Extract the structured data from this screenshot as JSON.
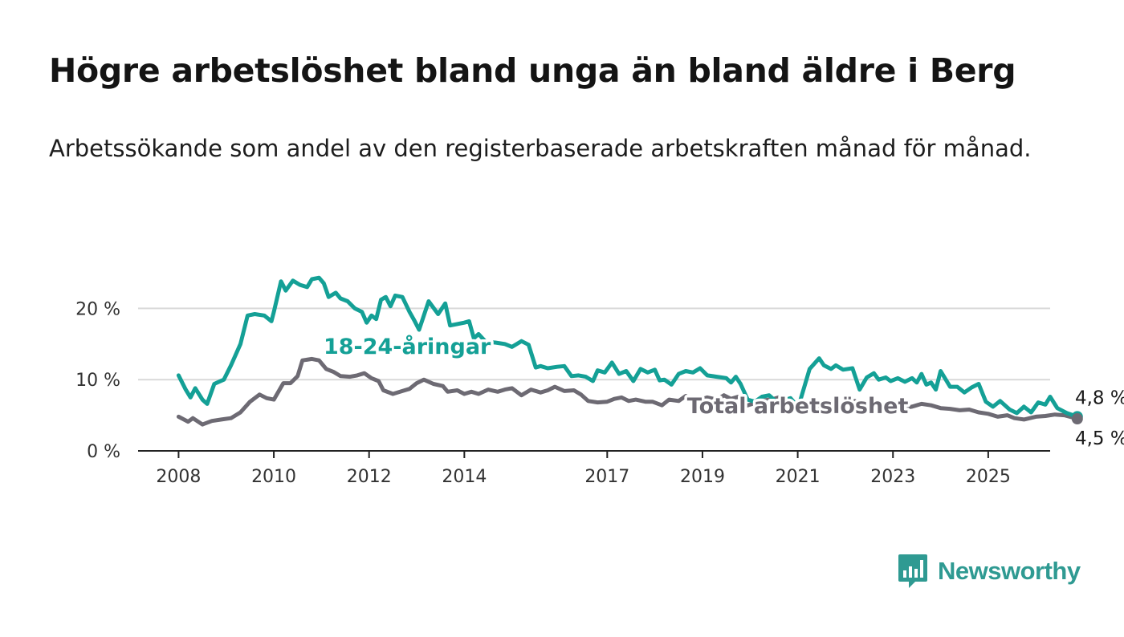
{
  "title": "Högre arbetslöshet bland unga än bland äldre i Berg",
  "subtitle": "Arbetssökande som andel av den registerbaserade arbetskraften månad för månad.",
  "brand": "Newsworthy",
  "colors": {
    "youth": "#14a096",
    "total": "#6d6a73",
    "grid": "#d9d9d9",
    "axis": "#222222"
  },
  "chart_data": {
    "type": "line",
    "y_ticks": [
      {
        "value": 0,
        "label": "0 %"
      },
      {
        "value": 10,
        "label": "10 %"
      },
      {
        "value": 20,
        "label": "20 %"
      }
    ],
    "x_ticks": [
      {
        "value": 2008,
        "label": "2008"
      },
      {
        "value": 2010,
        "label": "2010"
      },
      {
        "value": 2012,
        "label": "2012"
      },
      {
        "value": 2014,
        "label": "2014"
      },
      {
        "value": 2017,
        "label": "2017"
      },
      {
        "value": 2019,
        "label": "2019"
      },
      {
        "value": 2021,
        "label": "2021"
      },
      {
        "value": 2023,
        "label": "2023"
      },
      {
        "value": 2025,
        "label": "2025"
      }
    ],
    "xlim": [
      2007.15,
      2026.3
    ],
    "ylim": [
      0,
      25
    ],
    "series": [
      {
        "name": "18-24-åringar",
        "color": "#14a096",
        "label_at": [
          2012.8,
          13.6
        ],
        "end_label": "4,8 %",
        "points": [
          [
            2008.0,
            10.6
          ],
          [
            2008.15,
            8.6
          ],
          [
            2008.25,
            7.5
          ],
          [
            2008.35,
            8.8
          ],
          [
            2008.5,
            7.2
          ],
          [
            2008.6,
            6.6
          ],
          [
            2008.75,
            9.4
          ],
          [
            2008.95,
            10.0
          ],
          [
            2009.1,
            12.0
          ],
          [
            2009.3,
            15.0
          ],
          [
            2009.45,
            19.0
          ],
          [
            2009.6,
            19.2
          ],
          [
            2009.8,
            19.0
          ],
          [
            2009.95,
            18.2
          ],
          [
            2010.0,
            19.5
          ],
          [
            2010.15,
            23.8
          ],
          [
            2010.25,
            22.5
          ],
          [
            2010.4,
            23.9
          ],
          [
            2010.55,
            23.3
          ],
          [
            2010.7,
            23.0
          ],
          [
            2010.8,
            24.1
          ],
          [
            2010.95,
            24.3
          ],
          [
            2011.05,
            23.5
          ],
          [
            2011.15,
            21.6
          ],
          [
            2011.3,
            22.2
          ],
          [
            2011.4,
            21.4
          ],
          [
            2011.55,
            21.0
          ],
          [
            2011.7,
            20.0
          ],
          [
            2011.85,
            19.5
          ],
          [
            2011.95,
            18.0
          ],
          [
            2012.05,
            19.0
          ],
          [
            2012.15,
            18.5
          ],
          [
            2012.25,
            21.2
          ],
          [
            2012.35,
            21.6
          ],
          [
            2012.45,
            20.3
          ],
          [
            2012.55,
            21.8
          ],
          [
            2012.7,
            21.6
          ],
          [
            2012.85,
            19.5
          ],
          [
            2012.95,
            18.3
          ],
          [
            2013.05,
            17.0
          ],
          [
            2013.25,
            21.0
          ],
          [
            2013.45,
            19.2
          ],
          [
            2013.6,
            20.7
          ],
          [
            2013.7,
            17.6
          ],
          [
            2013.85,
            17.8
          ],
          [
            2014.0,
            18.0
          ],
          [
            2014.1,
            18.2
          ],
          [
            2014.2,
            15.8
          ],
          [
            2014.3,
            16.4
          ],
          [
            2014.45,
            15.3
          ],
          [
            2014.65,
            15.2
          ],
          [
            2014.85,
            15.0
          ],
          [
            2015.0,
            14.6
          ],
          [
            2015.2,
            15.4
          ],
          [
            2015.35,
            14.9
          ],
          [
            2015.5,
            11.7
          ],
          [
            2015.6,
            11.9
          ],
          [
            2015.75,
            11.6
          ],
          [
            2015.95,
            11.8
          ],
          [
            2016.1,
            11.9
          ],
          [
            2016.25,
            10.5
          ],
          [
            2016.4,
            10.6
          ],
          [
            2016.55,
            10.4
          ],
          [
            2016.7,
            9.8
          ],
          [
            2016.8,
            11.3
          ],
          [
            2016.95,
            11.0
          ],
          [
            2017.1,
            12.4
          ],
          [
            2017.25,
            10.8
          ],
          [
            2017.4,
            11.2
          ],
          [
            2017.55,
            9.8
          ],
          [
            2017.7,
            11.5
          ],
          [
            2017.85,
            11.0
          ],
          [
            2018.0,
            11.4
          ],
          [
            2018.1,
            9.9
          ],
          [
            2018.2,
            10.0
          ],
          [
            2018.35,
            9.3
          ],
          [
            2018.5,
            10.8
          ],
          [
            2018.65,
            11.2
          ],
          [
            2018.8,
            11.0
          ],
          [
            2018.95,
            11.6
          ],
          [
            2019.1,
            10.6
          ],
          [
            2019.3,
            10.4
          ],
          [
            2019.5,
            10.2
          ],
          [
            2019.6,
            9.6
          ],
          [
            2019.7,
            10.4
          ],
          [
            2019.8,
            9.4
          ],
          [
            2019.95,
            7.2
          ],
          [
            2020.1,
            6.9
          ],
          [
            2020.25,
            7.6
          ],
          [
            2020.4,
            7.8
          ],
          [
            2020.55,
            6.9
          ],
          [
            2020.7,
            7.1
          ],
          [
            2020.85,
            7.4
          ],
          [
            2020.95,
            6.6
          ],
          [
            2021.05,
            7.0
          ],
          [
            2021.25,
            11.5
          ],
          [
            2021.45,
            13.0
          ],
          [
            2021.55,
            12.0
          ],
          [
            2021.7,
            11.5
          ],
          [
            2021.8,
            12.0
          ],
          [
            2021.95,
            11.4
          ],
          [
            2022.15,
            11.6
          ],
          [
            2022.3,
            8.6
          ],
          [
            2022.45,
            10.3
          ],
          [
            2022.6,
            10.9
          ],
          [
            2022.7,
            10.0
          ],
          [
            2022.85,
            10.3
          ],
          [
            2022.95,
            9.8
          ],
          [
            2023.1,
            10.2
          ],
          [
            2023.25,
            9.7
          ],
          [
            2023.4,
            10.2
          ],
          [
            2023.5,
            9.6
          ],
          [
            2023.6,
            10.8
          ],
          [
            2023.7,
            9.3
          ],
          [
            2023.8,
            9.6
          ],
          [
            2023.9,
            8.6
          ],
          [
            2024.0,
            11.2
          ],
          [
            2024.2,
            9.0
          ],
          [
            2024.35,
            9.0
          ],
          [
            2024.5,
            8.2
          ],
          [
            2024.65,
            8.9
          ],
          [
            2024.8,
            9.4
          ],
          [
            2024.95,
            6.9
          ],
          [
            2025.1,
            6.2
          ],
          [
            2025.25,
            7.0
          ],
          [
            2025.45,
            5.8
          ],
          [
            2025.6,
            5.3
          ],
          [
            2025.75,
            6.2
          ],
          [
            2025.9,
            5.4
          ],
          [
            2026.05,
            6.8
          ],
          [
            2026.2,
            6.5
          ],
          [
            2026.3,
            7.6
          ],
          [
            2026.45,
            6.0
          ],
          [
            2026.65,
            5.3
          ],
          [
            2026.87,
            4.8
          ]
        ]
      },
      {
        "name": "Total arbetslöshet",
        "color": "#6d6a73",
        "label_at": [
          2021.0,
          5.3
        ],
        "end_label": "4,5 %",
        "points": [
          [
            2008.0,
            4.8
          ],
          [
            2008.2,
            4.1
          ],
          [
            2008.3,
            4.6
          ],
          [
            2008.5,
            3.7
          ],
          [
            2008.7,
            4.2
          ],
          [
            2008.9,
            4.4
          ],
          [
            2009.1,
            4.6
          ],
          [
            2009.3,
            5.4
          ],
          [
            2009.5,
            6.9
          ],
          [
            2009.7,
            7.9
          ],
          [
            2009.85,
            7.4
          ],
          [
            2010.0,
            7.2
          ],
          [
            2010.2,
            9.5
          ],
          [
            2010.35,
            9.5
          ],
          [
            2010.5,
            10.5
          ],
          [
            2010.6,
            12.7
          ],
          [
            2010.8,
            12.9
          ],
          [
            2010.95,
            12.7
          ],
          [
            2011.1,
            11.5
          ],
          [
            2011.25,
            11.1
          ],
          [
            2011.4,
            10.5
          ],
          [
            2011.6,
            10.4
          ],
          [
            2011.75,
            10.6
          ],
          [
            2011.9,
            10.9
          ],
          [
            2012.05,
            10.2
          ],
          [
            2012.2,
            9.8
          ],
          [
            2012.3,
            8.5
          ],
          [
            2012.5,
            8.0
          ],
          [
            2012.7,
            8.4
          ],
          [
            2012.85,
            8.7
          ],
          [
            2013.0,
            9.5
          ],
          [
            2013.15,
            10.0
          ],
          [
            2013.35,
            9.4
          ],
          [
            2013.55,
            9.1
          ],
          [
            2013.65,
            8.3
          ],
          [
            2013.85,
            8.5
          ],
          [
            2014.0,
            8.0
          ],
          [
            2014.15,
            8.3
          ],
          [
            2014.3,
            8.0
          ],
          [
            2014.5,
            8.6
          ],
          [
            2014.7,
            8.3
          ],
          [
            2014.85,
            8.6
          ],
          [
            2015.0,
            8.8
          ],
          [
            2015.2,
            7.8
          ],
          [
            2015.4,
            8.6
          ],
          [
            2015.6,
            8.2
          ],
          [
            2015.75,
            8.5
          ],
          [
            2015.9,
            9.0
          ],
          [
            2016.1,
            8.4
          ],
          [
            2016.3,
            8.5
          ],
          [
            2016.45,
            7.9
          ],
          [
            2016.6,
            7.0
          ],
          [
            2016.8,
            6.8
          ],
          [
            2017.0,
            6.9
          ],
          [
            2017.15,
            7.3
          ],
          [
            2017.3,
            7.5
          ],
          [
            2017.45,
            7.0
          ],
          [
            2017.6,
            7.2
          ],
          [
            2017.8,
            6.9
          ],
          [
            2017.95,
            6.9
          ],
          [
            2018.15,
            6.4
          ],
          [
            2018.3,
            7.2
          ],
          [
            2018.5,
            7.0
          ],
          [
            2018.65,
            7.7
          ],
          [
            2018.8,
            7.0
          ],
          [
            2018.95,
            7.2
          ],
          [
            2019.1,
            7.5
          ],
          [
            2019.3,
            7.2
          ],
          [
            2019.45,
            7.8
          ],
          [
            2019.6,
            7.3
          ],
          [
            2019.75,
            7.6
          ],
          [
            2019.9,
            6.3
          ],
          [
            2020.1,
            6.7
          ],
          [
            2020.3,
            7.1
          ],
          [
            2020.5,
            7.3
          ],
          [
            2020.65,
            7.6
          ],
          [
            2020.8,
            7.0
          ],
          [
            2021.0,
            6.4
          ],
          [
            2021.2,
            6.1
          ],
          [
            2021.4,
            6.3
          ],
          [
            2021.6,
            6.1
          ],
          [
            2021.8,
            5.9
          ],
          [
            2022.0,
            6.2
          ],
          [
            2022.2,
            7.0
          ],
          [
            2022.4,
            6.3
          ],
          [
            2022.6,
            6.5
          ],
          [
            2022.8,
            6.2
          ],
          [
            2023.0,
            6.5
          ],
          [
            2023.2,
            6.0
          ],
          [
            2023.4,
            6.2
          ],
          [
            2023.6,
            6.6
          ],
          [
            2023.8,
            6.4
          ],
          [
            2024.0,
            6.0
          ],
          [
            2024.2,
            5.9
          ],
          [
            2024.4,
            5.7
          ],
          [
            2024.6,
            5.8
          ],
          [
            2024.8,
            5.4
          ],
          [
            2025.0,
            5.2
          ],
          [
            2025.2,
            4.8
          ],
          [
            2025.4,
            5.0
          ],
          [
            2025.55,
            4.6
          ],
          [
            2025.75,
            4.4
          ],
          [
            2026.0,
            4.8
          ],
          [
            2026.2,
            4.9
          ],
          [
            2026.4,
            5.1
          ],
          [
            2026.6,
            5.0
          ],
          [
            2026.87,
            4.5
          ]
        ]
      }
    ]
  }
}
